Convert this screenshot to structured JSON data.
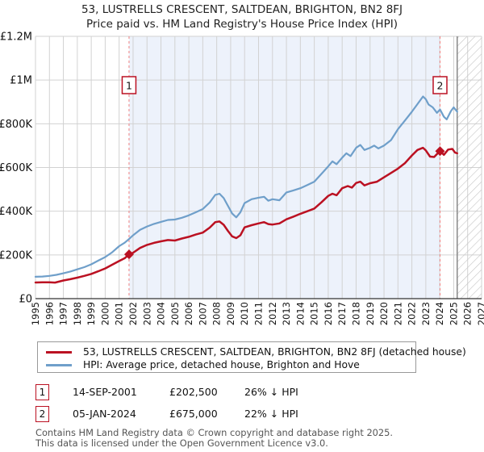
{
  "title": "53, LUSTRELLS CRESCENT, SALTDEAN, BRIGHTON, BN2 8FJ",
  "subtitle": "Price paid vs. HM Land Registry's House Price Index (HPI)",
  "colors": {
    "price_line": "#bb1122",
    "hpi_line": "#6f9fca",
    "shade": "#edf2fb",
    "grid": "#d2d2d2",
    "dashed_marker_line": "#f08080",
    "hatch_stroke": "#c4c4c4",
    "hatch_edge": "#888888",
    "axis": "#333333",
    "marker_box_border": "#bb1122"
  },
  "chart_data": {
    "type": "line",
    "x_axis": {
      "min": 1995,
      "max": 2027,
      "ticks": [
        1995,
        1996,
        1997,
        1998,
        1999,
        2000,
        2001,
        2002,
        2003,
        2004,
        2005,
        2006,
        2007,
        2008,
        2009,
        2010,
        2011,
        2012,
        2013,
        2014,
        2015,
        2016,
        2017,
        2018,
        2019,
        2020,
        2021,
        2022,
        2023,
        2024,
        2025,
        2026,
        2027
      ]
    },
    "y_axis": {
      "min": 0,
      "max": 1200000,
      "tick_values": [
        0,
        200000,
        400000,
        600000,
        800000,
        1000000,
        1200000
      ],
      "tick_labels": [
        "£0",
        "£200K",
        "£400K",
        "£600K",
        "£800K",
        "£1M",
        "£1.2M"
      ]
    },
    "shaded_region": {
      "from": 2001.71,
      "to": 2024.02
    },
    "hatched_region": {
      "from": 2025.25,
      "to": 2027
    },
    "markers": [
      {
        "label": "1",
        "x": 2001.71,
        "y": 202500
      },
      {
        "label": "2",
        "x": 2024.02,
        "y": 675000
      }
    ],
    "series": [
      {
        "id": "price-paid",
        "name": "53, LUSTRELLS CRESCENT, SALTDEAN, BRIGHTON, BN2 8FJ (detached house)",
        "color": "#bb1122",
        "width": 2.5,
        "points": [
          [
            1995.0,
            74000
          ],
          [
            1995.5,
            75000
          ],
          [
            1996.0,
            75000
          ],
          [
            1996.4,
            73500
          ],
          [
            1997.0,
            83000
          ],
          [
            1997.5,
            89000
          ],
          [
            1998.0,
            96000
          ],
          [
            1998.5,
            104000
          ],
          [
            1999.0,
            113000
          ],
          [
            1999.5,
            125000
          ],
          [
            2000.0,
            138000
          ],
          [
            2000.5,
            155000
          ],
          [
            2001.0,
            172000
          ],
          [
            2001.4,
            185000
          ],
          [
            2001.71,
            202500
          ],
          [
            2002.0,
            210000
          ],
          [
            2002.5,
            232000
          ],
          [
            2003.0,
            246000
          ],
          [
            2003.5,
            255000
          ],
          [
            2004.0,
            262000
          ],
          [
            2004.5,
            268000
          ],
          [
            2005.0,
            266000
          ],
          [
            2005.5,
            275000
          ],
          [
            2006.0,
            283000
          ],
          [
            2006.5,
            293000
          ],
          [
            2007.0,
            302000
          ],
          [
            2007.5,
            325000
          ],
          [
            2007.9,
            350000
          ],
          [
            2008.2,
            353000
          ],
          [
            2008.5,
            338000
          ],
          [
            2008.8,
            310000
          ],
          [
            2009.1,
            285000
          ],
          [
            2009.4,
            277000
          ],
          [
            2009.7,
            290000
          ],
          [
            2010.0,
            326000
          ],
          [
            2010.5,
            336000
          ],
          [
            2011.0,
            344000
          ],
          [
            2011.4,
            350000
          ],
          [
            2011.7,
            341000
          ],
          [
            2012.0,
            339000
          ],
          [
            2012.5,
            344000
          ],
          [
            2013.0,
            363000
          ],
          [
            2013.5,
            375000
          ],
          [
            2014.0,
            388000
          ],
          [
            2014.5,
            400000
          ],
          [
            2015.0,
            412000
          ],
          [
            2015.5,
            440000
          ],
          [
            2016.0,
            470000
          ],
          [
            2016.3,
            480000
          ],
          [
            2016.6,
            473000
          ],
          [
            2017.0,
            505000
          ],
          [
            2017.4,
            515000
          ],
          [
            2017.7,
            508000
          ],
          [
            2018.0,
            529000
          ],
          [
            2018.3,
            535000
          ],
          [
            2018.6,
            518000
          ],
          [
            2019.0,
            528000
          ],
          [
            2019.5,
            535000
          ],
          [
            2020.0,
            555000
          ],
          [
            2020.5,
            575000
          ],
          [
            2021.0,
            595000
          ],
          [
            2021.5,
            620000
          ],
          [
            2022.0,
            655000
          ],
          [
            2022.4,
            680000
          ],
          [
            2022.8,
            690000
          ],
          [
            2023.0,
            678000
          ],
          [
            2023.3,
            650000
          ],
          [
            2023.6,
            648000
          ],
          [
            2023.9,
            668000
          ],
          [
            2024.02,
            675000
          ],
          [
            2024.3,
            658000
          ],
          [
            2024.6,
            682000
          ],
          [
            2024.9,
            685000
          ],
          [
            2025.1,
            668000
          ],
          [
            2025.25,
            665000
          ]
        ]
      },
      {
        "id": "hpi",
        "name": "HPI: Average price, detached house, Brighton and Hove",
        "color": "#6f9fca",
        "width": 2.2,
        "points": [
          [
            1995.0,
            100000
          ],
          [
            1995.5,
            101000
          ],
          [
            1996.0,
            104000
          ],
          [
            1996.5,
            109000
          ],
          [
            1997.0,
            116000
          ],
          [
            1997.5,
            124000
          ],
          [
            1998.0,
            134000
          ],
          [
            1998.5,
            144000
          ],
          [
            1999.0,
            157000
          ],
          [
            1999.5,
            174000
          ],
          [
            2000.0,
            190000
          ],
          [
            2000.5,
            212000
          ],
          [
            2001.0,
            240000
          ],
          [
            2001.4,
            256000
          ],
          [
            2001.71,
            273000
          ],
          [
            2002.0,
            290000
          ],
          [
            2002.5,
            315000
          ],
          [
            2003.0,
            330000
          ],
          [
            2003.5,
            342000
          ],
          [
            2004.0,
            351000
          ],
          [
            2004.5,
            360000
          ],
          [
            2005.0,
            362000
          ],
          [
            2005.5,
            370000
          ],
          [
            2006.0,
            381000
          ],
          [
            2006.5,
            395000
          ],
          [
            2007.0,
            410000
          ],
          [
            2007.5,
            440000
          ],
          [
            2007.9,
            475000
          ],
          [
            2008.2,
            480000
          ],
          [
            2008.5,
            460000
          ],
          [
            2008.8,
            425000
          ],
          [
            2009.1,
            390000
          ],
          [
            2009.4,
            372000
          ],
          [
            2009.7,
            395000
          ],
          [
            2010.0,
            437000
          ],
          [
            2010.5,
            455000
          ],
          [
            2011.0,
            462000
          ],
          [
            2011.4,
            466000
          ],
          [
            2011.7,
            448000
          ],
          [
            2012.0,
            455000
          ],
          [
            2012.5,
            450000
          ],
          [
            2013.0,
            486000
          ],
          [
            2013.5,
            495000
          ],
          [
            2014.0,
            505000
          ],
          [
            2014.5,
            520000
          ],
          [
            2015.0,
            535000
          ],
          [
            2015.5,
            570000
          ],
          [
            2016.0,
            605000
          ],
          [
            2016.3,
            628000
          ],
          [
            2016.6,
            615000
          ],
          [
            2017.0,
            645000
          ],
          [
            2017.3,
            665000
          ],
          [
            2017.6,
            652000
          ],
          [
            2018.0,
            690000
          ],
          [
            2018.3,
            703000
          ],
          [
            2018.6,
            680000
          ],
          [
            2019.0,
            690000
          ],
          [
            2019.3,
            700000
          ],
          [
            2019.6,
            687000
          ],
          [
            2020.0,
            700000
          ],
          [
            2020.5,
            725000
          ],
          [
            2021.0,
            775000
          ],
          [
            2021.5,
            815000
          ],
          [
            2022.0,
            855000
          ],
          [
            2022.4,
            890000
          ],
          [
            2022.8,
            925000
          ],
          [
            2023.0,
            912000
          ],
          [
            2023.2,
            888000
          ],
          [
            2023.5,
            875000
          ],
          [
            2023.8,
            850000
          ],
          [
            2024.02,
            865000
          ],
          [
            2024.3,
            832000
          ],
          [
            2024.5,
            820000
          ],
          [
            2024.8,
            858000
          ],
          [
            2025.0,
            875000
          ],
          [
            2025.25,
            855000
          ]
        ]
      }
    ]
  },
  "legend": {
    "items": [
      {
        "label": "53, LUSTRELLS CRESCENT, SALTDEAN, BRIGHTON, BN2 8FJ (detached house)",
        "color": "#bb1122"
      },
      {
        "label": "HPI: Average price, detached house, Brighton and Hove",
        "color": "#6f9fca"
      }
    ]
  },
  "annotations": [
    {
      "num": "1",
      "date": "14-SEP-2001",
      "price": "£202,500",
      "delta": "26% ↓ HPI"
    },
    {
      "num": "2",
      "date": "05-JAN-2024",
      "price": "£675,000",
      "delta": "22% ↓ HPI"
    }
  ],
  "footer": {
    "line1": "Contains HM Land Registry data © Crown copyright and database right 2025.",
    "line2": "This data is licensed under the Open Government Licence v3.0."
  }
}
